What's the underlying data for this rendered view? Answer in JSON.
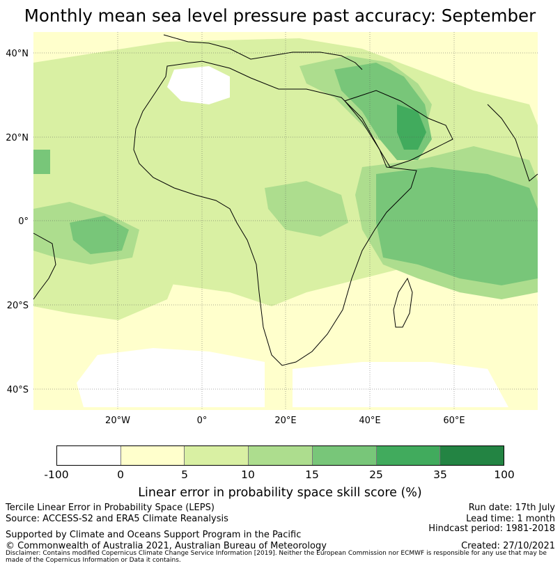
{
  "title": "Monthly mean sea level pressure past accuracy: September",
  "map": {
    "lat_labels": [
      "40°N",
      "20°N",
      "0°",
      "20°S",
      "40°S"
    ],
    "lon_labels": [
      "20°W",
      "0°",
      "20°E",
      "40°E",
      "60°E"
    ],
    "extent": {
      "lon_min": -20,
      "lon_max": 80,
      "lat_min": -45,
      "lat_max": 45
    }
  },
  "colorbar": {
    "ticks": [
      "-100",
      "0",
      "5",
      "10",
      "15",
      "25",
      "35",
      "100"
    ],
    "colors": [
      "#ffffff",
      "#ffffcc",
      "#d9f0a3",
      "#addd8e",
      "#78c679",
      "#41ab5d",
      "#238443"
    ],
    "label": "Linear error in probability space skill score (%)"
  },
  "footer": {
    "line1": "Tercile Linear Error in Probability Space (LEPS)",
    "line2": "Source: ACCESS-S2 and ERA5 Climate Reanalysis",
    "support": "Supported by Climate and Oceans Support Program in the Pacific",
    "copyright": "© Commonwealth of Australia 2021, Australian Bureau of Meteorology",
    "run_date": "Run date: 17th July",
    "lead_time": "Lead time: 1 month",
    "hindcast": "Hindcast period: 1981-2018",
    "created": "Created: 27/10/2021",
    "disclaimer": "Disclaimer: Contains modified Copernicus Climate Change Service Information [2019]. Neither the European Commission nor ECMWF is responsible for any use that may be made of the Copernicus Information or Data it contains."
  }
}
